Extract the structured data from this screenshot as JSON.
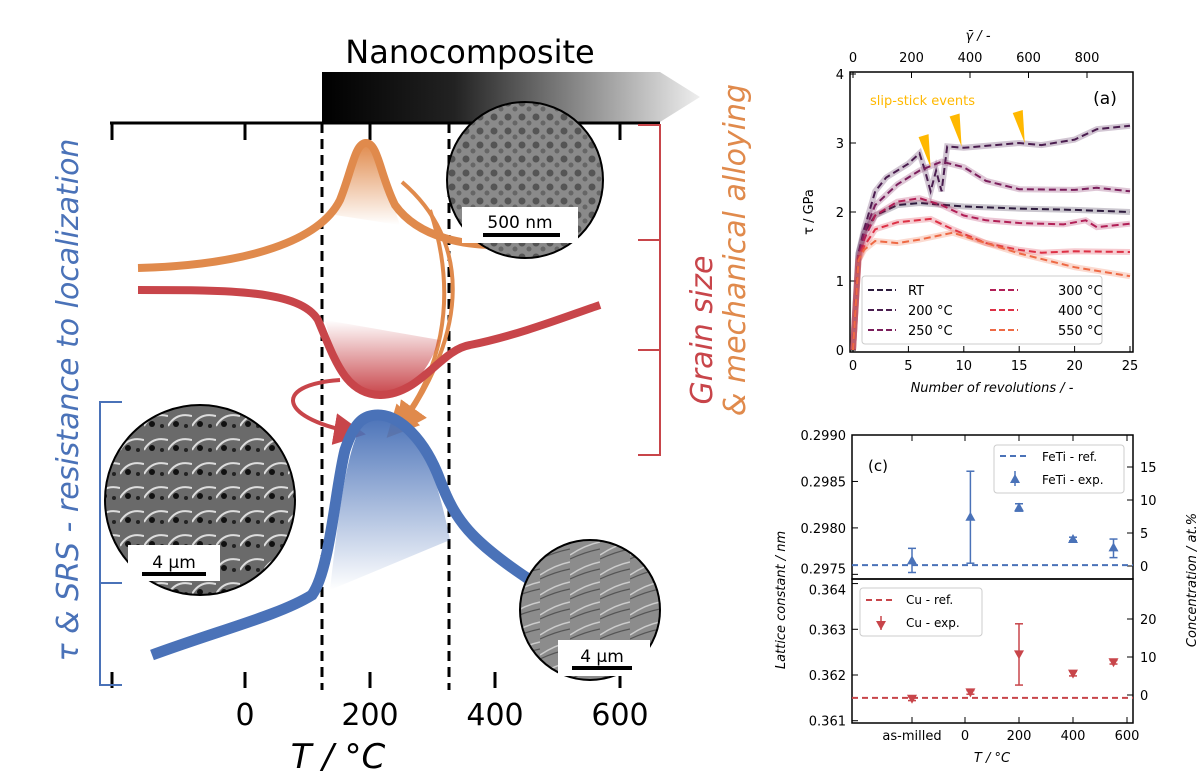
{
  "diagram": {
    "banner_label": "Nanocomposite",
    "x_axis_label": "T / °C",
    "x_ticks": [
      "0",
      "200",
      "400",
      "600"
    ],
    "left_label": "τ & SRS - resistance to localization",
    "right_label_1": "Grain size",
    "right_label_2": "& mechanical alloying",
    "tem_scale": "500 nm",
    "sem_left_scale": "4 µm",
    "sem_right_scale": "4 µm",
    "colors": {
      "blue": "#4a72b8",
      "red": "#c8454a",
      "orange": "#e08a4c"
    }
  },
  "chart_data": [
    {
      "type": "line",
      "panel_label": "(a)",
      "xlabel": "Number of revolutions / -",
      "ylabel": "τ / GPa",
      "top_xlabel": "γ̄ / -",
      "xlim": [
        0,
        25.5
      ],
      "ylim": [
        0,
        4
      ],
      "x_ticks": [
        "0",
        "5",
        "10",
        "15",
        "20",
        "25"
      ],
      "y_ticks": [
        "0",
        "1",
        "2",
        "3",
        "4"
      ],
      "top_ticks": [
        "0",
        "200",
        "400",
        "600",
        "800"
      ],
      "annotation": "slip-stick events",
      "annotation_color": "#ffb800",
      "slip_stick_at": [
        [
          7,
          2.65
        ],
        [
          9.8,
          2.95
        ],
        [
          15.5,
          3.0
        ]
      ],
      "legend_position": "lower-center",
      "series": [
        {
          "name": "RT",
          "color": "#2d1b3d",
          "points": [
            [
              0,
              0
            ],
            [
              0.5,
              1.4
            ],
            [
              1,
              1.7
            ],
            [
              2,
              1.95
            ],
            [
              4,
              2.1
            ],
            [
              6,
              2.13
            ],
            [
              10,
              2.08
            ],
            [
              15,
              2.05
            ],
            [
              20,
              2.03
            ],
            [
              25,
              2.0
            ]
          ]
        },
        {
          "name": "200 °C",
          "color": "#4a1d4f",
          "points": [
            [
              0,
              0
            ],
            [
              0.5,
              1.4
            ],
            [
              1,
              1.75
            ],
            [
              2,
              2.3
            ],
            [
              3,
              2.5
            ],
            [
              5,
              2.7
            ],
            [
              6,
              2.85
            ],
            [
              6.5,
              2.6
            ],
            [
              7,
              2.3
            ],
            [
              7.5,
              2.6
            ],
            [
              8,
              2.3
            ],
            [
              8.5,
              2.95
            ],
            [
              10,
              2.93
            ],
            [
              15,
              3.0
            ],
            [
              17,
              2.97
            ],
            [
              20,
              3.05
            ],
            [
              22,
              3.2
            ],
            [
              25,
              3.25
            ]
          ]
        },
        {
          "name": "250 °C",
          "color": "#7b1e5c",
          "points": [
            [
              0,
              0
            ],
            [
              0.5,
              1.35
            ],
            [
              1,
              1.7
            ],
            [
              2,
              2.1
            ],
            [
              4,
              2.4
            ],
            [
              6,
              2.6
            ],
            [
              8,
              2.73
            ],
            [
              10,
              2.65
            ],
            [
              12,
              2.45
            ],
            [
              15,
              2.33
            ],
            [
              20,
              2.32
            ],
            [
              22,
              2.35
            ],
            [
              25,
              2.3
            ]
          ]
        },
        {
          "name": "300 °C",
          "color": "#b11f56",
          "points": [
            [
              0,
              0
            ],
            [
              0.5,
              1.3
            ],
            [
              1,
              1.6
            ],
            [
              2,
              1.95
            ],
            [
              4,
              2.15
            ],
            [
              6,
              2.2
            ],
            [
              8,
              2.1
            ],
            [
              10,
              1.95
            ],
            [
              12,
              1.88
            ],
            [
              15,
              1.84
            ],
            [
              19,
              1.82
            ],
            [
              21,
              1.88
            ],
            [
              22,
              1.78
            ],
            [
              25,
              1.83
            ]
          ]
        },
        {
          "name": "400 °C",
          "color": "#dd3045",
          "points": [
            [
              0,
              0
            ],
            [
              0.5,
              1.3
            ],
            [
              1,
              1.5
            ],
            [
              2,
              1.75
            ],
            [
              4,
              1.85
            ],
            [
              7,
              1.9
            ],
            [
              9,
              1.75
            ],
            [
              12,
              1.55
            ],
            [
              15,
              1.45
            ],
            [
              17,
              1.41
            ],
            [
              20,
              1.43
            ],
            [
              25,
              1.42
            ]
          ]
        },
        {
          "name": "550 °C",
          "color": "#ee6a45",
          "points": [
            [
              0,
              0
            ],
            [
              0.5,
              1.3
            ],
            [
              1,
              1.45
            ],
            [
              2,
              1.58
            ],
            [
              4,
              1.55
            ],
            [
              6,
              1.6
            ],
            [
              9,
              1.7
            ],
            [
              12,
              1.55
            ],
            [
              15,
              1.4
            ],
            [
              20,
              1.2
            ],
            [
              25,
              1.07
            ]
          ]
        }
      ]
    },
    {
      "type": "scatter",
      "panel_label": "(c)",
      "xlabel": "T / °C",
      "ylabel": "Lattice constant / nm",
      "right_ylabel": "Concentration / at.%",
      "x_categories": [
        "as-milled",
        "0",
        "200",
        "400",
        "600"
      ],
      "top": {
        "y_ticks": [
          "0.2975",
          "0.2980",
          "0.2985",
          "0.2990"
        ],
        "right_ticks": [
          "0",
          "5",
          "10",
          "15"
        ],
        "ylim": [
          0.29745,
          0.299
        ],
        "ref": {
          "name": "FeTi - ref.",
          "value": 0.2976,
          "color": "#4a72b8"
        },
        "exp": {
          "name": "FeTi - exp.",
          "color": "#4a72b8",
          "marker": "triangle-up",
          "points": [
            [
              "as-milled",
              0.29765,
              0.29752,
              0.29778
            ],
            [
              20,
              0.29812,
              0.29762,
              0.29861
            ],
            [
              200,
              0.29822,
              0.29818,
              0.29826
            ],
            [
              400,
              0.29788,
              0.29786,
              0.2979
            ],
            [
              550,
              0.29779,
              0.29768,
              0.29788
            ]
          ]
        }
      },
      "bottom": {
        "y_ticks": [
          "0.361",
          "0.362",
          "0.363",
          "0.364"
        ],
        "right_ticks": [
          "0",
          "10",
          "20"
        ],
        "ylim": [
          0.36095,
          0.3641
        ],
        "ref": {
          "name": "Cu - ref.",
          "value": 0.3615,
          "color": "#c8454a"
        },
        "exp": {
          "name": "Cu - exp.",
          "color": "#c8454a",
          "marker": "triangle-down",
          "points": [
            [
              "as-milled",
              0.36148,
              0.36144,
              0.36152
            ],
            [
              20,
              0.36162,
              0.36158,
              0.36166
            ],
            [
              200,
              0.36245,
              0.36178,
              0.36312
            ],
            [
              400,
              0.36203,
              0.36198,
              0.36208
            ],
            [
              550,
              0.36228,
              0.36224,
              0.36232
            ]
          ]
        }
      }
    }
  ]
}
